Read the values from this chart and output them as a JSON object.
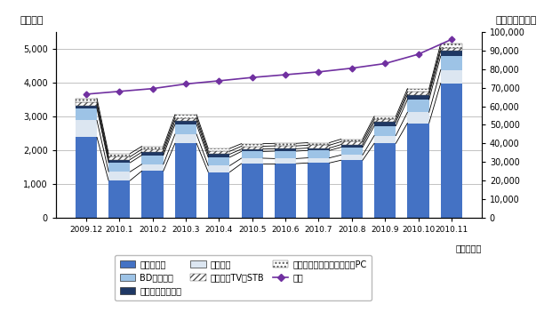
{
  "categories": [
    "2009.12",
    "2010.1",
    "2010.2",
    "2010.3",
    "2010.4",
    "2010.5",
    "2010.6",
    "2010.7",
    "2010.8",
    "2010.9",
    "2010.10",
    "2010.11"
  ],
  "薄型テレビ": [
    2380,
    1100,
    1380,
    2200,
    1350,
    1600,
    1600,
    1620,
    1700,
    2200,
    2800,
    3980
  ],
  "チューナ": [
    500,
    260,
    200,
    270,
    190,
    160,
    150,
    150,
    155,
    230,
    320,
    400
  ],
  "BDレコーダ": [
    350,
    270,
    270,
    290,
    250,
    200,
    220,
    220,
    230,
    290,
    380,
    410
  ],
  "デジタルレコーダ": [
    90,
    90,
    90,
    110,
    90,
    70,
    70,
    70,
    80,
    110,
    140,
    150
  ],
  "ケーブルTV用STB": [
    95,
    85,
    85,
    85,
    85,
    85,
    85,
    85,
    85,
    85,
    85,
    85
  ],
  "地上デジタルチューナ内蔵PC": [
    115,
    95,
    85,
    95,
    85,
    75,
    75,
    75,
    75,
    85,
    95,
    125
  ],
  "累計": [
    66500,
    68000,
    69500,
    72000,
    73700,
    75500,
    77000,
    78500,
    80500,
    83000,
    88000,
    96000
  ],
  "cumulative_scale": 18.18,
  "ylim_left": [
    0,
    5500
  ],
  "ylim_right": [
    0,
    100000
  ],
  "cumulative_color": "#7030a0",
  "ylabel_left": "（千台）",
  "ylabel_right": "（累計・千台）",
  "xlabel": "（年・月）",
  "legend_row1": [
    "薄型テレビ",
    "BDレコーダ",
    "デジタルレコーダ"
  ],
  "legend_row2": [
    "チューナ",
    "ケーブルTV用STB",
    "地上デジタルチューナ内蔵PC"
  ],
  "legend_row3": [
    "累計"
  ]
}
